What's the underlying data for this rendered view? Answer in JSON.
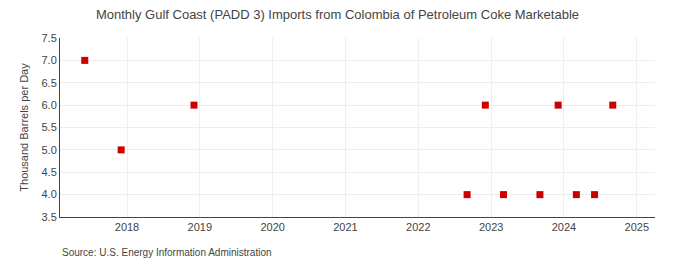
{
  "chart_data": {
    "type": "scatter",
    "title": "Monthly Gulf Coast (PADD 3) Imports from Colombia of Petroleum Coke Marketable",
    "ylabel": "Thousand Barrels per Day",
    "annotations": [
      "Source: U.S. Energy Information Administration"
    ],
    "x": [
      2017.42,
      2017.92,
      2018.92,
      2022.67,
      2022.92,
      2023.17,
      2023.67,
      2023.92,
      2024.17,
      2024.42,
      2024.67
    ],
    "values": [
      7.0,
      5.0,
      6.0,
      4.0,
      6.0,
      4.0,
      4.0,
      6.0,
      4.0,
      4.0,
      6.0
    ],
    "color": "#cc0000",
    "marker": "square",
    "xlim": [
      2017.08,
      2025.25
    ],
    "xticks": [
      2018,
      2019,
      2020,
      2021,
      2022,
      2023,
      2024,
      2025
    ],
    "ylim": [
      3.5,
      7.5
    ],
    "yticks": [
      3.5,
      {
        "value": 4.0,
        "label": "4.0"
      },
      4.5,
      {
        "value": 5.0,
        "label": "5.0"
      },
      5.5,
      {
        "value": 6.0,
        "label": "6.0"
      },
      6.5,
      {
        "value": 7.0,
        "label": "7.0"
      },
      7.5
    ],
    "grid": true
  }
}
